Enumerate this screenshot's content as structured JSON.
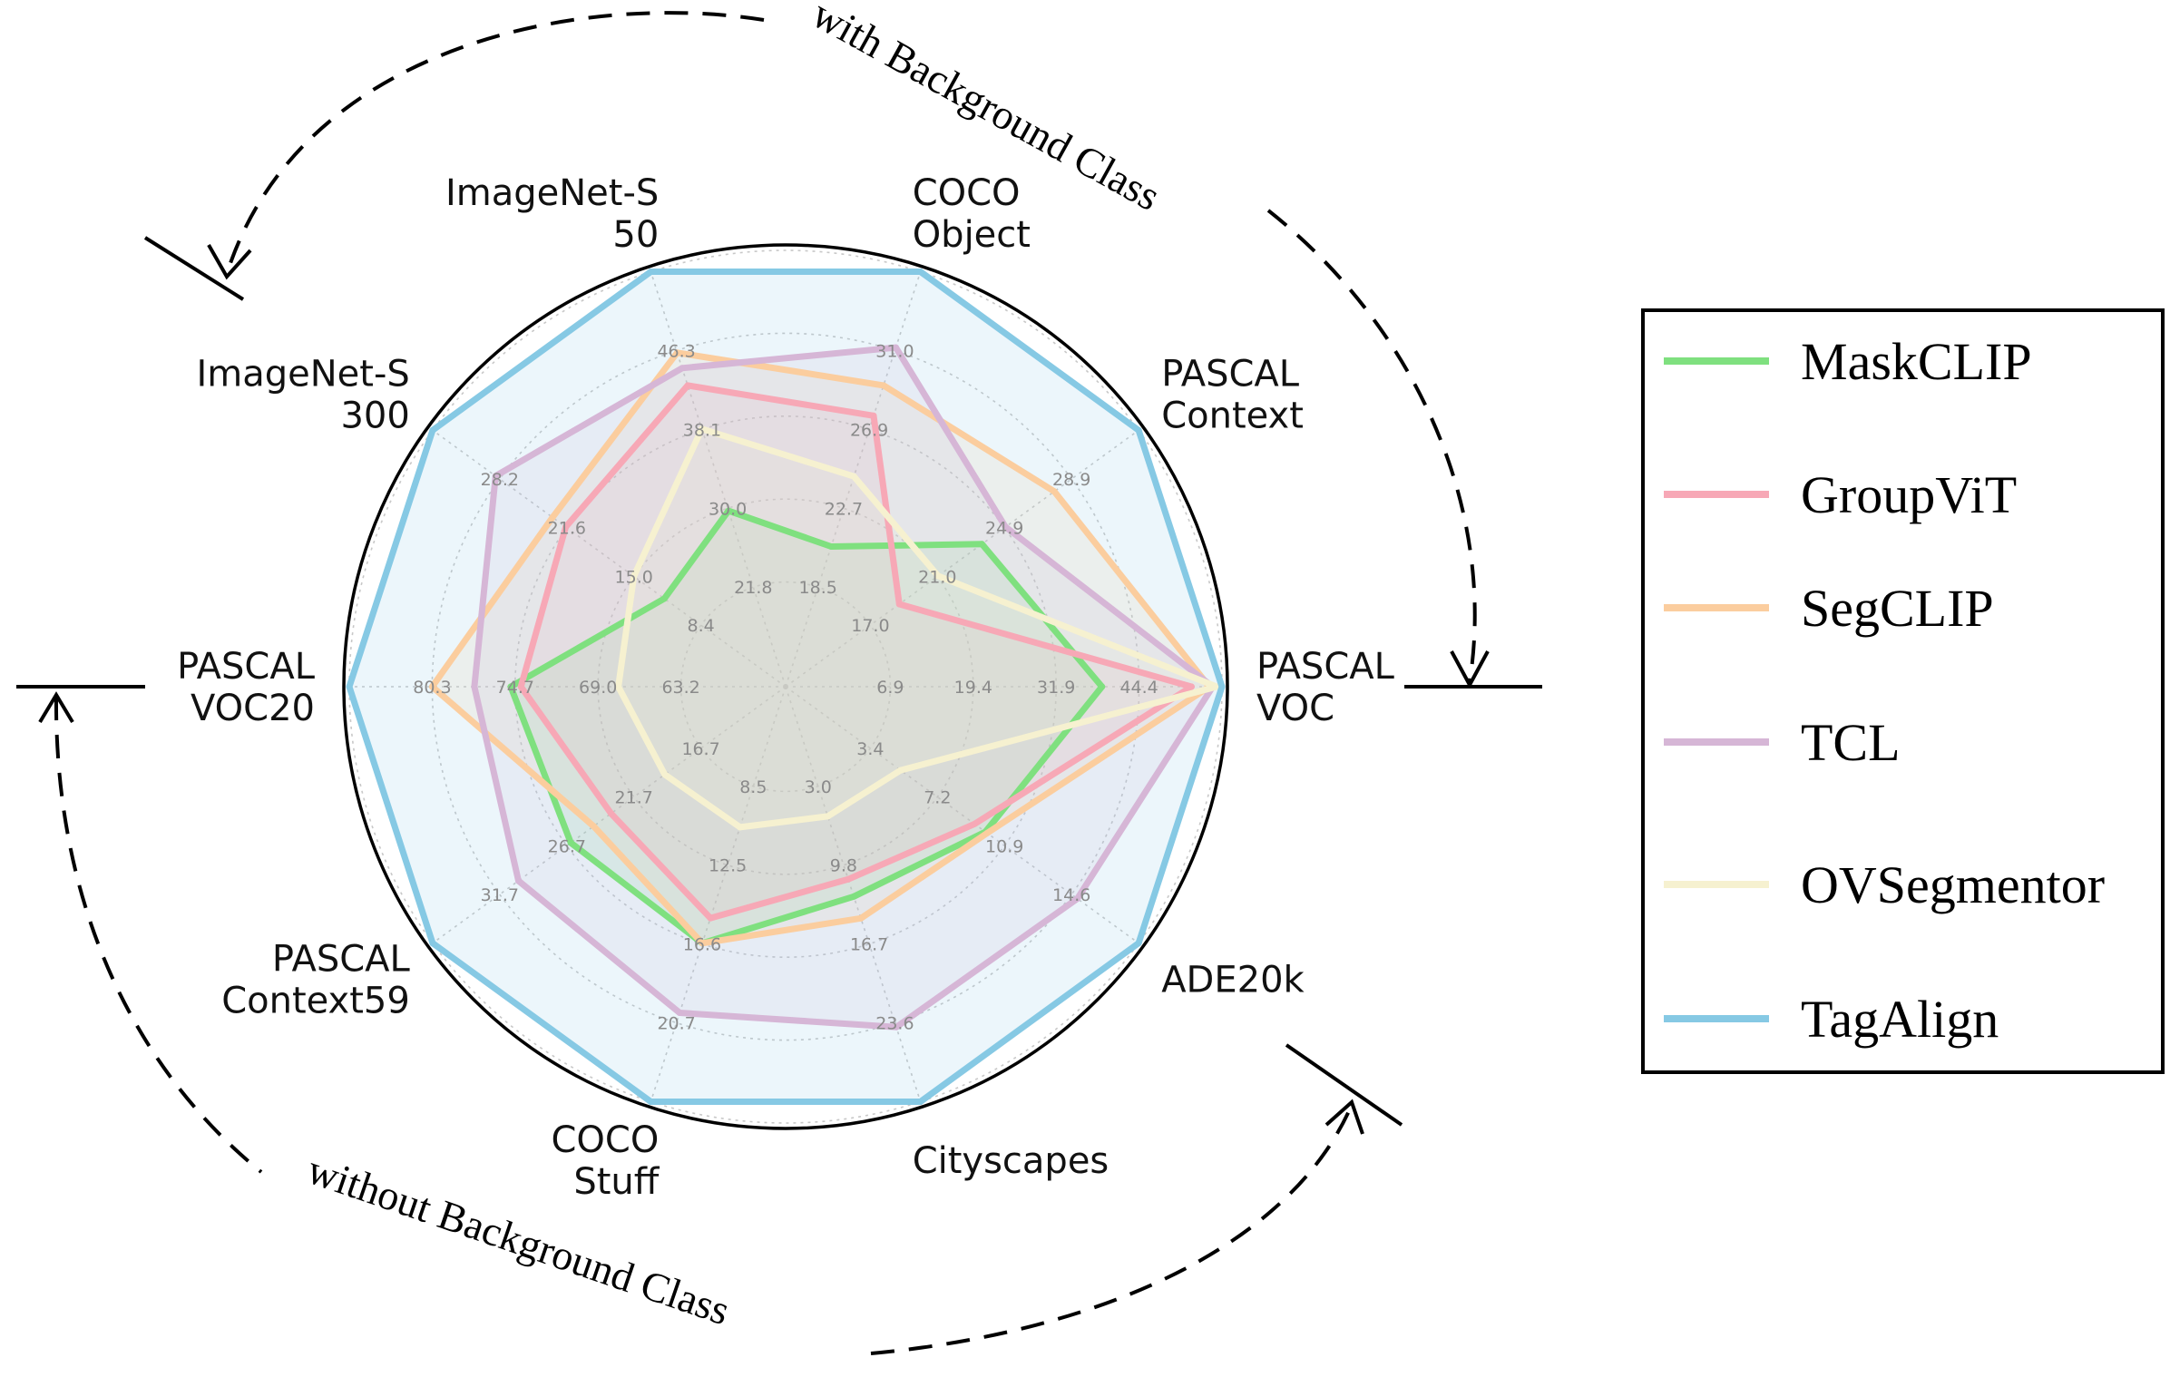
{
  "chart_data": {
    "type": "radar",
    "categories": [
      "PASCAL VOC",
      "PASCAL Context",
      "COCO Object",
      "ImageNet-S 50",
      "ImageNet-S 300",
      "PASCAL VOC20",
      "PASCAL Context59",
      "COCO Stuff",
      "Cityscapes",
      "ADE20k"
    ],
    "category_lines": [
      [
        "PASCAL",
        "VOC"
      ],
      [
        "PASCAL",
        "Context"
      ],
      [
        "COCO",
        "Object"
      ],
      [
        "ImageNet-S",
        "50"
      ],
      [
        "ImageNet-S",
        "300"
      ],
      [
        "PASCAL",
        "VOC20"
      ],
      [
        "PASCAL",
        "Context59"
      ],
      [
        "COCO",
        "Stuff"
      ],
      [
        "Cityscapes"
      ],
      [
        "ADE20k"
      ]
    ],
    "axis_ticks": [
      [
        "6.9",
        "19.4",
        "31.9",
        "44.4"
      ],
      [
        "17.0",
        "21.0",
        "24.9",
        "28.9"
      ],
      [
        "18.5",
        "22.7",
        "26.9",
        "31.0"
      ],
      [
        "21.8",
        "30.0",
        "38.1",
        "46.3"
      ],
      [
        "8.4",
        "15.0",
        "21.6",
        "28.2"
      ],
      [
        "63.2",
        "69.0",
        "74.7",
        "80.3"
      ],
      [
        "16.7",
        "21.7",
        "26.7",
        "31.7"
      ],
      [
        "8.5",
        "12.5",
        "16.6",
        "20.7"
      ],
      [
        "3.0",
        "9.8",
        "16.7",
        "23.6"
      ],
      [
        "3.4",
        "7.2",
        "10.9",
        "14.6"
      ]
    ],
    "axis_ranges": [
      [
        -5.6,
        56.9
      ],
      [
        13.0,
        32.9
      ],
      [
        14.3,
        35.1
      ],
      [
        13.6,
        54.5
      ],
      [
        1.8,
        34.8
      ],
      [
        57.5,
        86.0
      ],
      [
        11.7,
        36.7
      ],
      [
        4.4,
        24.8
      ],
      [
        -3.9,
        30.5
      ],
      [
        -0.3,
        18.3
      ]
    ],
    "series": [
      {
        "name": "MaskCLIP",
        "color": "#7fe07f",
        "values": [
          38.8,
          23.6,
          20.6,
          29.7,
          12.0,
          74.9,
          26.4,
          16.6,
          12.6,
          9.8
        ]
      },
      {
        "name": "GroupViT",
        "color": "#f7a8b6",
        "values": [
          52.3,
          18.7,
          27.5,
          42.7,
          21.7,
          74.2,
          23.4,
          15.3,
          11.1,
          9.2
        ]
      },
      {
        "name": "SegCLIP",
        "color": "#fbcd9e",
        "values": [
          55.0,
          27.9,
          29.1,
          46.1,
          23.0,
          80.3,
          24.7,
          16.6,
          14.5,
          9.9
        ]
      },
      {
        "name": "TCL",
        "color": "#d6b6d6",
        "values": [
          55.5,
          25.0,
          31.1,
          44.5,
          28.6,
          77.4,
          30.3,
          20.2,
          24.0,
          14.9
        ]
      },
      {
        "name": "OVSegmentor",
        "color": "#f6f1d0",
        "values": [
          56.1,
          21.0,
          24.3,
          38.2,
          15.0,
          67.5,
          19.4,
          10.6,
          5.6,
          5.1
        ]
      },
      {
        "name": "TagAlign",
        "color": "#86c9e4",
        "values": [
          56.9,
          32.9,
          35.1,
          54.5,
          34.8,
          86.0,
          36.7,
          24.8,
          30.5,
          18.3
        ]
      }
    ],
    "annotations": {
      "top_arc": "with Background Class",
      "bottom_arc": "without Background Class"
    },
    "grid": true,
    "legend_position": "right"
  }
}
